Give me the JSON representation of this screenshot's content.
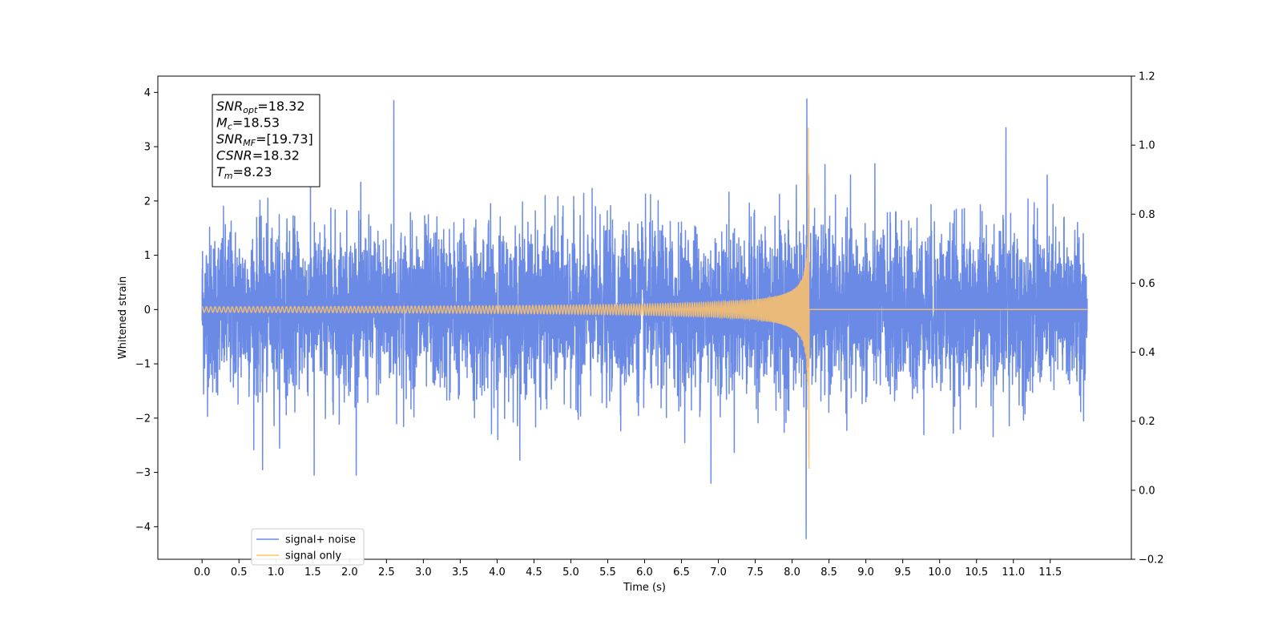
{
  "chart_data": {
    "type": "line",
    "xlabel": "Time (s)",
    "ylabel": "Whitened strain",
    "xlim": [
      -0.6,
      12.6
    ],
    "ylim": [
      -4.6,
      4.3
    ],
    "y2lim": [
      -0.2,
      1.2
    ],
    "x_ticks": [
      0.0,
      0.5,
      1.0,
      1.5,
      2.0,
      2.5,
      3.0,
      3.5,
      4.0,
      4.5,
      5.0,
      5.5,
      6.0,
      6.5,
      7.0,
      7.5,
      8.0,
      8.5,
      9.0,
      9.5,
      10.0,
      10.5,
      11.0,
      11.5
    ],
    "x_tick_labels": [
      "0.0",
      "0.5",
      "1.0",
      "1.5",
      "2.0",
      "2.5",
      "3.0",
      "3.5",
      "4.0",
      "4.5",
      "5.0",
      "5.5",
      "6.0",
      "6.5",
      "7.0",
      "7.5",
      "8.0",
      "8.5",
      "9.0",
      "9.5",
      "10.0",
      "10.5",
      "11.0",
      "11.5"
    ],
    "y_ticks": [
      -4,
      -3,
      -2,
      -1,
      0,
      1,
      2,
      3,
      4
    ],
    "y_tick_labels": [
      "−4",
      "−3",
      "−2",
      "−1",
      "0",
      "1",
      "2",
      "3",
      "4"
    ],
    "y2_ticks": [
      -0.2,
      0.0,
      0.2,
      0.4,
      0.6,
      0.8,
      1.0,
      1.2
    ],
    "y2_tick_labels": [
      "−0.2",
      "0.0",
      "0.2",
      "0.4",
      "0.6",
      "0.8",
      "1.0",
      "1.2"
    ],
    "grid": false,
    "legend_position": "lower-left",
    "series": [
      {
        "name": "signal+ noise",
        "color": "#6a8ae6",
        "x_range": [
          0.0,
          12.0
        ],
        "noise_std": 0.75,
        "notable_peaks": [
          {
            "x": 2.6,
            "y": 3.85
          },
          {
            "x": 8.2,
            "y": 3.88
          },
          {
            "x": 8.19,
            "y": -4.22
          },
          {
            "x": 10.9,
            "y": 3.35
          },
          {
            "x": 6.9,
            "y": -3.2
          },
          {
            "x": 1.52,
            "y": -3.05
          },
          {
            "x": 0.82,
            "y": -2.95
          }
        ]
      },
      {
        "name": "signal only",
        "color": "#ffc266",
        "x_range": [
          0.0,
          12.0
        ],
        "type": "chirp",
        "merger_time": 8.23,
        "peak_amplitude": 3.35,
        "min_amplitude": -2.75,
        "post_merger_value": 0.0
      }
    ],
    "annotation": {
      "lines": [
        {
          "main": "SNR",
          "sub": "opt",
          "value": "=18.32"
        },
        {
          "main": "M",
          "sub": "c",
          "value": "=18.53"
        },
        {
          "main": "SNR",
          "sub": "MF",
          "value": "=[19.73]"
        },
        {
          "main": "CSNR",
          "sub": "",
          "value": "=18.32"
        },
        {
          "main": "T",
          "sub": "m",
          "value": "=8.23"
        }
      ]
    }
  }
}
